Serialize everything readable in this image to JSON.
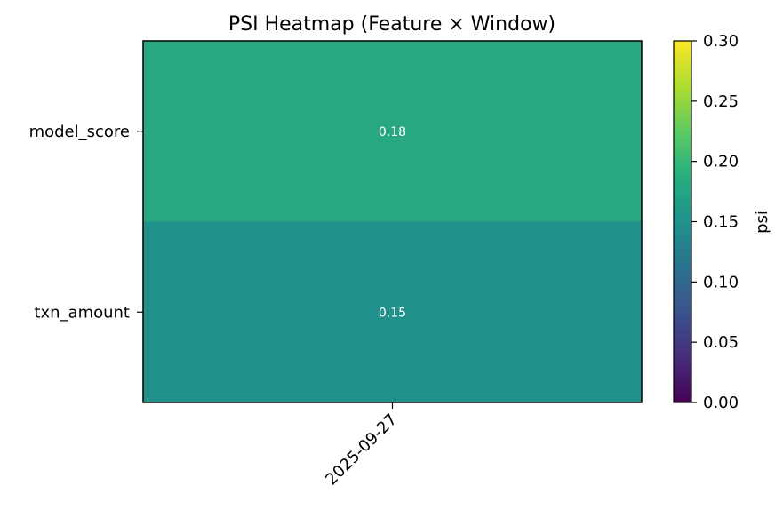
{
  "chart_data": {
    "type": "heatmap",
    "title": "PSI Heatmap (Feature × Window)",
    "rows": [
      "model_score",
      "txn_amount"
    ],
    "columns": [
      "2025-09-27"
    ],
    "values": [
      [
        0.18
      ],
      [
        0.15
      ]
    ],
    "value_labels": [
      [
        "0.18"
      ],
      [
        "0.15"
      ]
    ],
    "colormap": "viridis",
    "colorbar": {
      "label": "psi",
      "range": [
        0.0,
        0.3
      ],
      "ticks": [
        "0.00",
        "0.05",
        "0.10",
        "0.15",
        "0.20",
        "0.25",
        "0.30"
      ]
    }
  }
}
